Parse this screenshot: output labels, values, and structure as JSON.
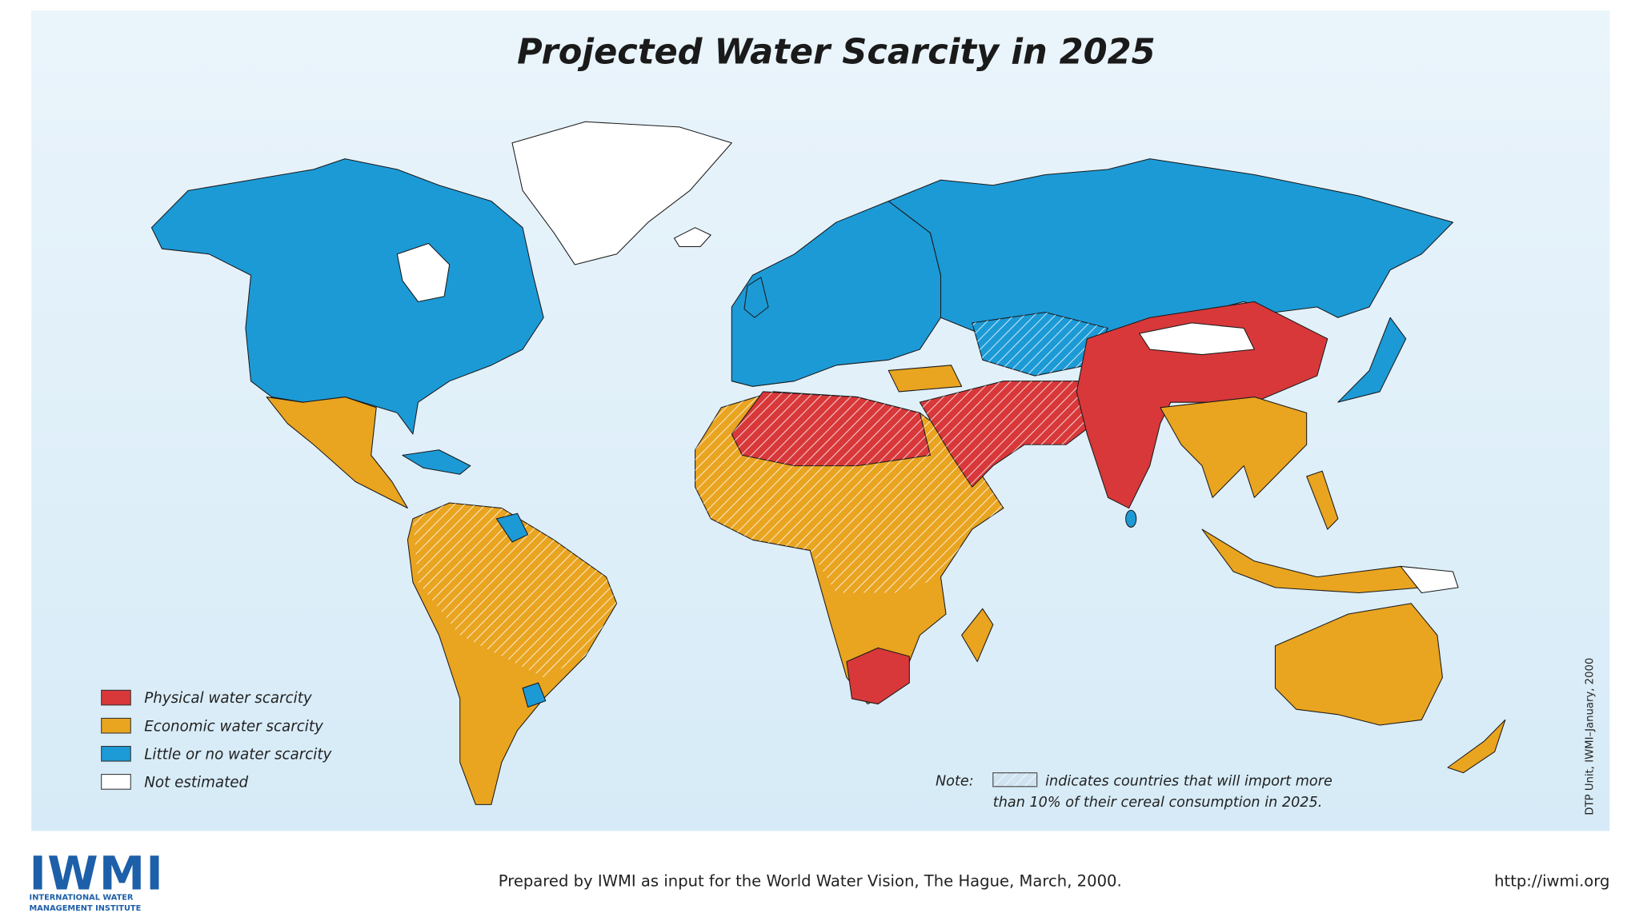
{
  "map": {
    "title": "Projected Water Scarcity in 2025",
    "legend": [
      {
        "label": "Physical water scarcity",
        "color": "#d8383a"
      },
      {
        "label": "Economic water scarcity",
        "color": "#e9a420"
      },
      {
        "label": "Little or no water scarcity",
        "color": "#1c9ad6"
      },
      {
        "label": "Not estimated",
        "color": "#ffffff"
      }
    ],
    "note": {
      "label": "Note:",
      "line1": "indicates countries that will import more",
      "line2": "than 10% of their cereal consumption in 2025."
    },
    "credit": "DTP Unit, IWMI–January, 2000"
  },
  "footer": {
    "logo": "IWMI",
    "logo_line1": "INTERNATIONAL  WATER",
    "logo_line2": "MANAGEMENT INSTITUTE",
    "prepared": "Prepared by IWMI as input for the World Water Vision, The Hague, March, 2000.",
    "url": "http://iwmi.org"
  }
}
